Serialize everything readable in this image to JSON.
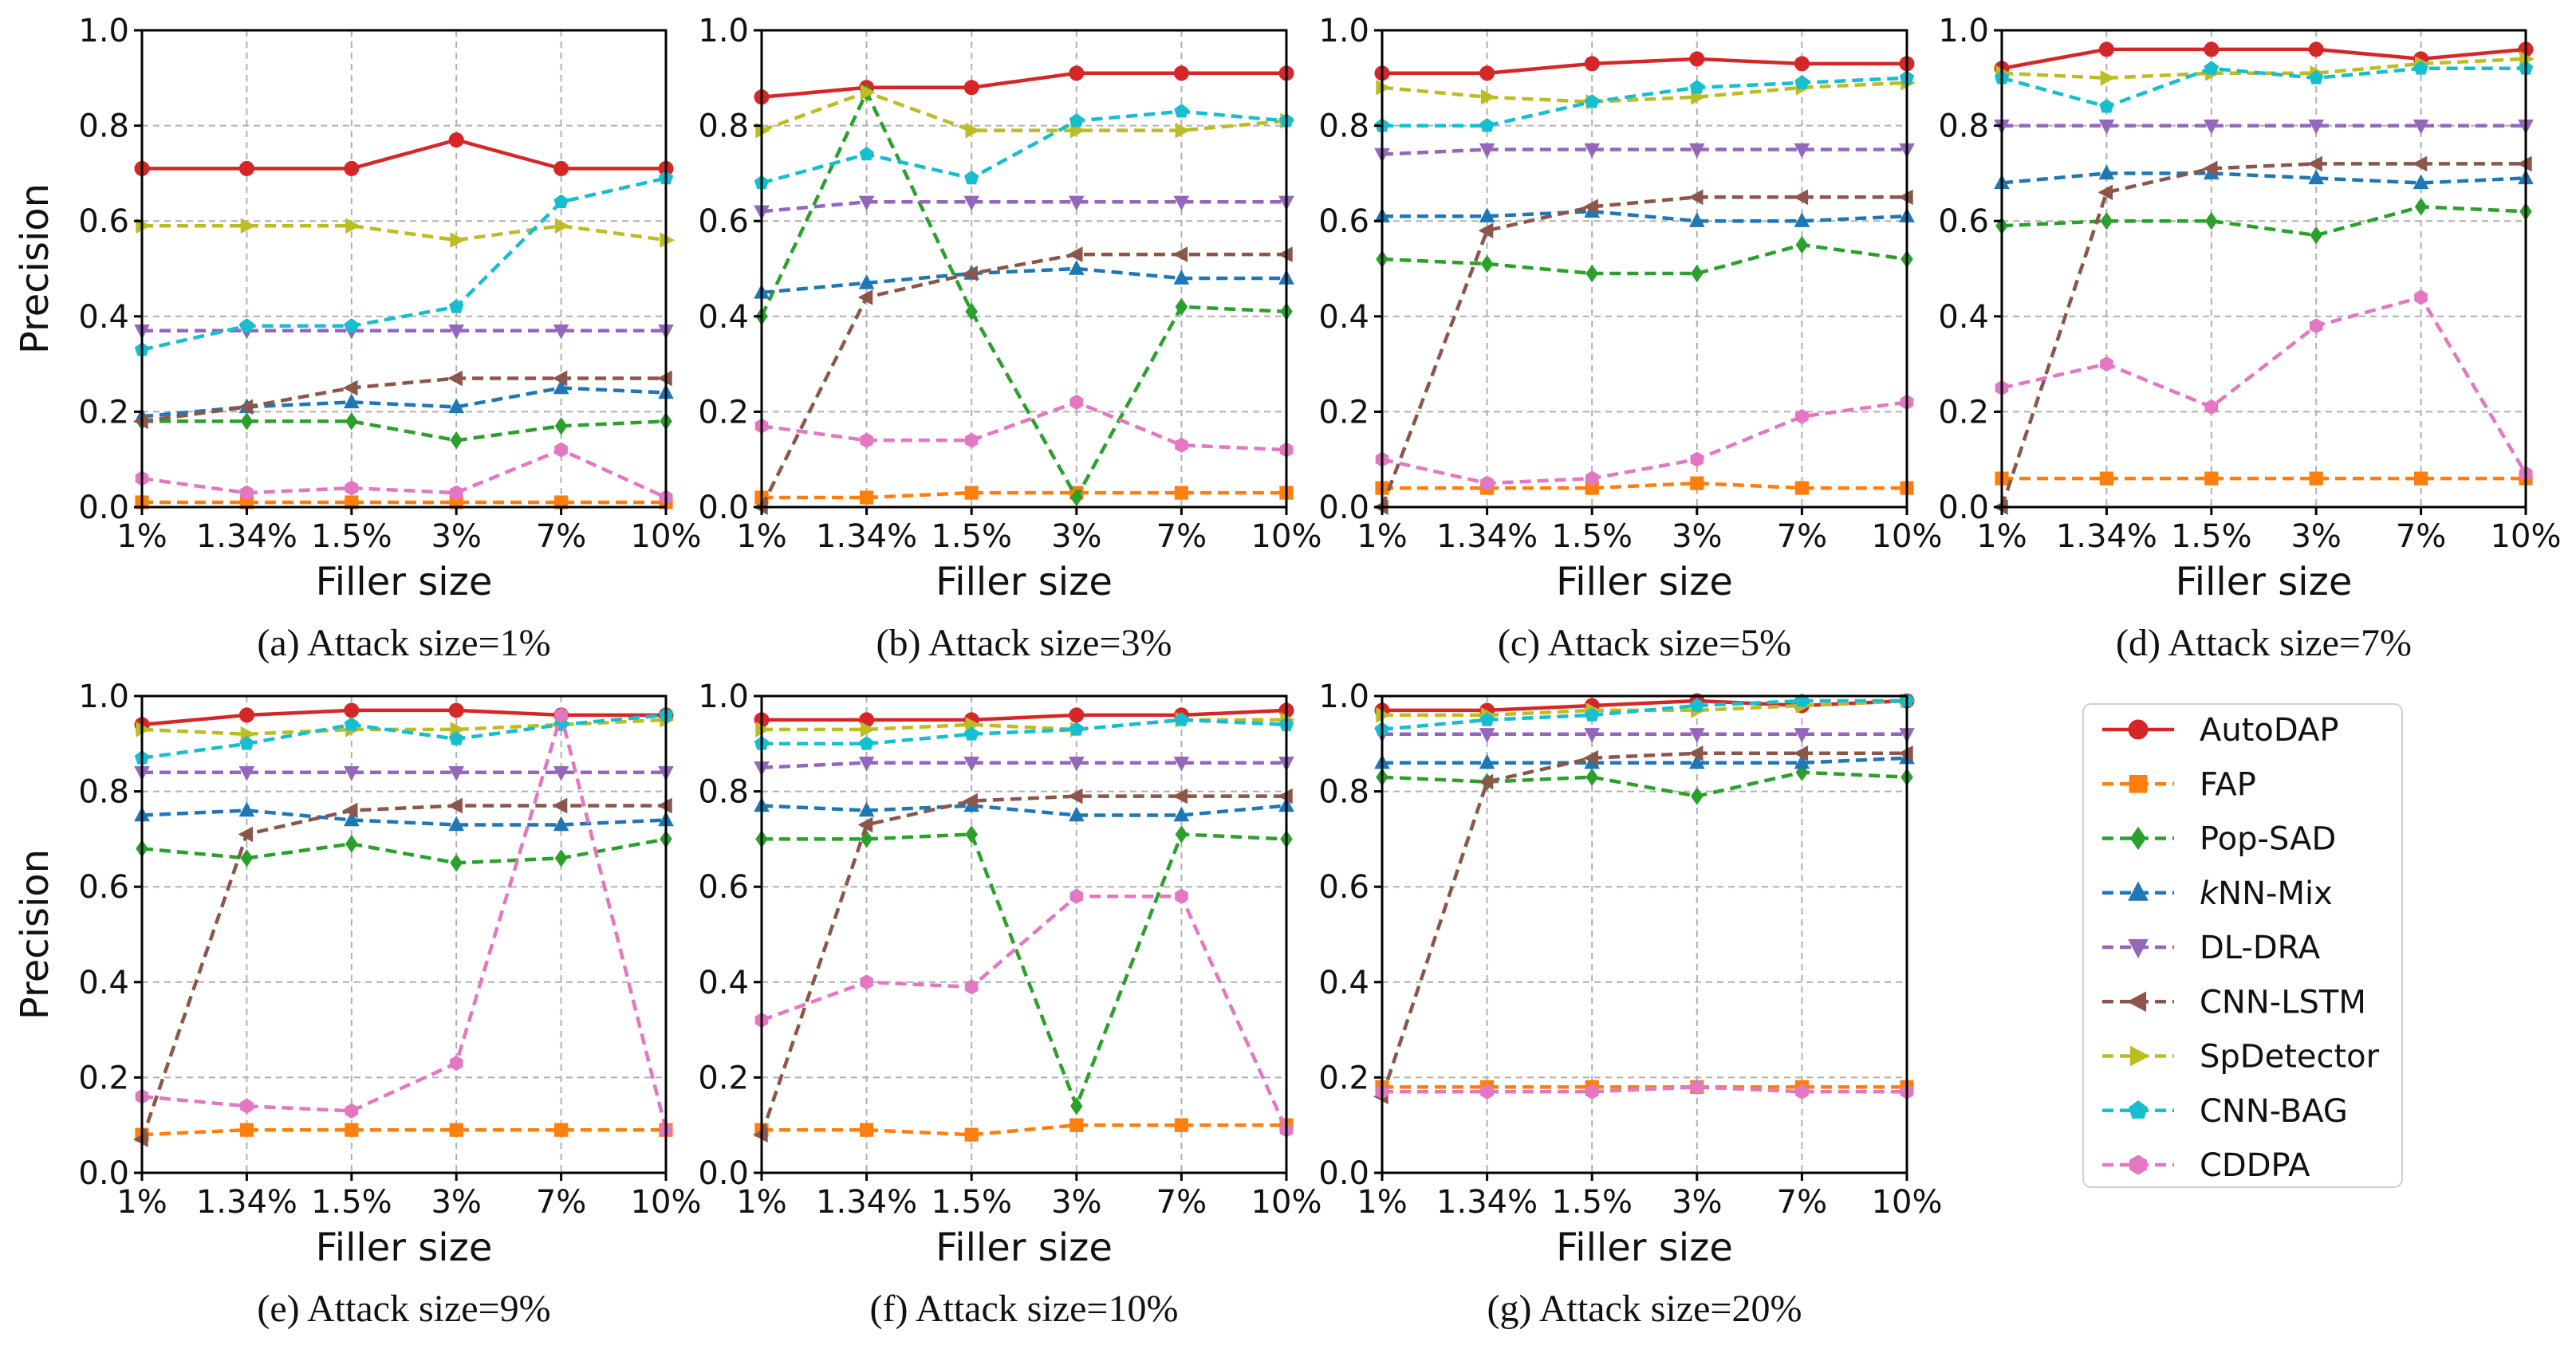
{
  "figure": {
    "legend": [
      "AutoDAP",
      "FAP",
      "Pop-SAD",
      "kNN-Mix",
      "DL-DRA",
      "CNN-LSTM",
      "SpDetector",
      "CNN-BAG",
      "CDDPA"
    ],
    "legend_placement": "in the empty bottom-right panel slot",
    "series_styles": [
      {
        "name": "AutoDAP",
        "color": "#d62728",
        "marker": "circle",
        "dash": "solid"
      },
      {
        "name": "FAP",
        "color": "#ff7f0e",
        "marker": "square",
        "dash": "dashed"
      },
      {
        "name": "Pop-SAD",
        "color": "#2ca02c",
        "marker": "diamond",
        "dash": "dashed"
      },
      {
        "name": "kNN-Mix",
        "color": "#1f77b4",
        "marker": "triangle-up",
        "dash": "dashed"
      },
      {
        "name": "DL-DRA",
        "color": "#9467bd",
        "marker": "triangle-down",
        "dash": "dashed"
      },
      {
        "name": "CNN-LSTM",
        "color": "#8c564b",
        "marker": "triangle-left",
        "dash": "dashed"
      },
      {
        "name": "SpDetector",
        "color": "#bcbd22",
        "marker": "triangle-right",
        "dash": "dashed"
      },
      {
        "name": "CNN-BAG",
        "color": "#17becf",
        "marker": "pentagon",
        "dash": "dashed"
      },
      {
        "name": "CDDPA",
        "color": "#e377c2",
        "marker": "hexagon",
        "dash": "dashed"
      }
    ]
  },
  "chart_data": [
    {
      "type": "line",
      "caption": "(a) Attack size=1%",
      "xlabel": "Filler size",
      "ylabel": "Precision",
      "categories": [
        "1%",
        "1.34%",
        "1.5%",
        "3%",
        "7%",
        "10%"
      ],
      "ylim": [
        0,
        1
      ],
      "yticks": [
        "0.0",
        "0.2",
        "0.4",
        "0.6",
        "0.8",
        "1.0"
      ],
      "grid": true,
      "series": [
        {
          "name": "AutoDAP",
          "values": [
            0.71,
            0.71,
            0.71,
            0.77,
            0.71,
            0.71
          ]
        },
        {
          "name": "FAP",
          "values": [
            0.01,
            0.01,
            0.01,
            0.01,
            0.01,
            0.01
          ]
        },
        {
          "name": "Pop-SAD",
          "values": [
            0.18,
            0.18,
            0.18,
            0.14,
            0.17,
            0.18
          ]
        },
        {
          "name": "kNN-Mix",
          "values": [
            0.19,
            0.21,
            0.22,
            0.21,
            0.25,
            0.24
          ]
        },
        {
          "name": "DL-DRA",
          "values": [
            0.37,
            0.37,
            0.37,
            0.37,
            0.37,
            0.37
          ]
        },
        {
          "name": "CNN-LSTM",
          "values": [
            0.18,
            0.21,
            0.25,
            0.27,
            0.27,
            0.27
          ]
        },
        {
          "name": "SpDetector",
          "values": [
            0.59,
            0.59,
            0.59,
            0.56,
            0.59,
            0.56
          ]
        },
        {
          "name": "CNN-BAG",
          "values": [
            0.33,
            0.38,
            0.38,
            0.42,
            0.64,
            0.69
          ]
        },
        {
          "name": "CDDPA",
          "values": [
            0.06,
            0.03,
            0.04,
            0.03,
            0.12,
            0.02
          ]
        }
      ]
    },
    {
      "type": "line",
      "caption": "(b) Attack size=3%",
      "xlabel": "Filler size",
      "ylabel": "",
      "categories": [
        "1%",
        "1.34%",
        "1.5%",
        "3%",
        "7%",
        "10%"
      ],
      "ylim": [
        0,
        1
      ],
      "yticks": [
        "0.0",
        "0.2",
        "0.4",
        "0.6",
        "0.8",
        "1.0"
      ],
      "grid": true,
      "series": [
        {
          "name": "AutoDAP",
          "values": [
            0.86,
            0.88,
            0.88,
            0.91,
            0.91,
            0.91
          ]
        },
        {
          "name": "FAP",
          "values": [
            0.02,
            0.02,
            0.03,
            0.03,
            0.03,
            0.03
          ]
        },
        {
          "name": "Pop-SAD",
          "values": [
            0.4,
            0.87,
            0.41,
            0.02,
            0.42,
            0.41
          ]
        },
        {
          "name": "kNN-Mix",
          "values": [
            0.45,
            0.47,
            0.49,
            0.5,
            0.48,
            0.48
          ]
        },
        {
          "name": "DL-DRA",
          "values": [
            0.62,
            0.64,
            0.64,
            0.64,
            0.64,
            0.64
          ]
        },
        {
          "name": "CNN-LSTM",
          "values": [
            0.0,
            0.44,
            0.49,
            0.53,
            0.53,
            0.53
          ]
        },
        {
          "name": "SpDetector",
          "values": [
            0.79,
            0.87,
            0.79,
            0.79,
            0.79,
            0.81
          ]
        },
        {
          "name": "CNN-BAG",
          "values": [
            0.68,
            0.74,
            0.69,
            0.81,
            0.83,
            0.81
          ]
        },
        {
          "name": "CDDPA",
          "values": [
            0.17,
            0.14,
            0.14,
            0.22,
            0.13,
            0.12
          ]
        }
      ]
    },
    {
      "type": "line",
      "caption": "(c) Attack size=5%",
      "xlabel": "Filler size",
      "ylabel": "",
      "categories": [
        "1%",
        "1.34%",
        "1.5%",
        "3%",
        "7%",
        "10%"
      ],
      "ylim": [
        0,
        1
      ],
      "yticks": [
        "0.0",
        "0.2",
        "0.4",
        "0.6",
        "0.8",
        "1.0"
      ],
      "grid": true,
      "series": [
        {
          "name": "AutoDAP",
          "values": [
            0.91,
            0.91,
            0.93,
            0.94,
            0.93,
            0.93
          ]
        },
        {
          "name": "FAP",
          "values": [
            0.04,
            0.04,
            0.04,
            0.05,
            0.04,
            0.04
          ]
        },
        {
          "name": "Pop-SAD",
          "values": [
            0.52,
            0.51,
            0.49,
            0.49,
            0.55,
            0.52
          ]
        },
        {
          "name": "kNN-Mix",
          "values": [
            0.61,
            0.61,
            0.62,
            0.6,
            0.6,
            0.61
          ]
        },
        {
          "name": "DL-DRA",
          "values": [
            0.74,
            0.75,
            0.75,
            0.75,
            0.75,
            0.75
          ]
        },
        {
          "name": "CNN-LSTM",
          "values": [
            0.0,
            0.58,
            0.63,
            0.65,
            0.65,
            0.65
          ]
        },
        {
          "name": "SpDetector",
          "values": [
            0.88,
            0.86,
            0.85,
            0.86,
            0.88,
            0.89
          ]
        },
        {
          "name": "CNN-BAG",
          "values": [
            0.8,
            0.8,
            0.85,
            0.88,
            0.89,
            0.9
          ]
        },
        {
          "name": "CDDPA",
          "values": [
            0.1,
            0.05,
            0.06,
            0.1,
            0.19,
            0.22
          ]
        }
      ]
    },
    {
      "type": "line",
      "caption": "(d) Attack size=7%",
      "xlabel": "Filler size",
      "ylabel": "",
      "categories": [
        "1%",
        "1.34%",
        "1.5%",
        "3%",
        "7%",
        "10%"
      ],
      "ylim": [
        0,
        1
      ],
      "yticks": [
        "0.0",
        "0.2",
        "0.4",
        "0.6",
        "0.8",
        "1.0"
      ],
      "grid": true,
      "series": [
        {
          "name": "AutoDAP",
          "values": [
            0.92,
            0.96,
            0.96,
            0.96,
            0.94,
            0.96
          ]
        },
        {
          "name": "FAP",
          "values": [
            0.06,
            0.06,
            0.06,
            0.06,
            0.06,
            0.06
          ]
        },
        {
          "name": "Pop-SAD",
          "values": [
            0.59,
            0.6,
            0.6,
            0.57,
            0.63,
            0.62
          ]
        },
        {
          "name": "kNN-Mix",
          "values": [
            0.68,
            0.7,
            0.7,
            0.69,
            0.68,
            0.69
          ]
        },
        {
          "name": "DL-DRA",
          "values": [
            0.8,
            0.8,
            0.8,
            0.8,
            0.8,
            0.8
          ]
        },
        {
          "name": "CNN-LSTM",
          "values": [
            0.0,
            0.66,
            0.71,
            0.72,
            0.72,
            0.72
          ]
        },
        {
          "name": "SpDetector",
          "values": [
            0.91,
            0.9,
            0.91,
            0.91,
            0.93,
            0.94
          ]
        },
        {
          "name": "CNN-BAG",
          "values": [
            0.9,
            0.84,
            0.92,
            0.9,
            0.92,
            0.92
          ]
        },
        {
          "name": "CDDPA",
          "values": [
            0.25,
            0.3,
            0.21,
            0.38,
            0.44,
            0.07
          ]
        }
      ]
    },
    {
      "type": "line",
      "caption": "(e) Attack size=9%",
      "xlabel": "Filler size",
      "ylabel": "Precision",
      "categories": [
        "1%",
        "1.34%",
        "1.5%",
        "3%",
        "7%",
        "10%"
      ],
      "ylim": [
        0,
        1
      ],
      "yticks": [
        "0.0",
        "0.2",
        "0.4",
        "0.6",
        "0.8",
        "1.0"
      ],
      "grid": true,
      "series": [
        {
          "name": "AutoDAP",
          "values": [
            0.94,
            0.96,
            0.97,
            0.97,
            0.96,
            0.96
          ]
        },
        {
          "name": "FAP",
          "values": [
            0.08,
            0.09,
            0.09,
            0.09,
            0.09,
            0.09
          ]
        },
        {
          "name": "Pop-SAD",
          "values": [
            0.68,
            0.66,
            0.69,
            0.65,
            0.66,
            0.7
          ]
        },
        {
          "name": "kNN-Mix",
          "values": [
            0.75,
            0.76,
            0.74,
            0.73,
            0.73,
            0.74
          ]
        },
        {
          "name": "DL-DRA",
          "values": [
            0.84,
            0.84,
            0.84,
            0.84,
            0.84,
            0.84
          ]
        },
        {
          "name": "CNN-LSTM",
          "values": [
            0.07,
            0.71,
            0.76,
            0.77,
            0.77,
            0.77
          ]
        },
        {
          "name": "SpDetector",
          "values": [
            0.93,
            0.92,
            0.93,
            0.93,
            0.94,
            0.95
          ]
        },
        {
          "name": "CNN-BAG",
          "values": [
            0.87,
            0.9,
            0.94,
            0.91,
            0.94,
            0.96
          ]
        },
        {
          "name": "CDDPA",
          "values": [
            0.16,
            0.14,
            0.13,
            0.23,
            0.96,
            0.09
          ]
        }
      ]
    },
    {
      "type": "line",
      "caption": "(f) Attack size=10%",
      "xlabel": "Filler size",
      "ylabel": "",
      "categories": [
        "1%",
        "1.34%",
        "1.5%",
        "3%",
        "7%",
        "10%"
      ],
      "ylim": [
        0,
        1
      ],
      "yticks": [
        "0.0",
        "0.2",
        "0.4",
        "0.6",
        "0.8",
        "1.0"
      ],
      "grid": true,
      "series": [
        {
          "name": "AutoDAP",
          "values": [
            0.95,
            0.95,
            0.95,
            0.96,
            0.96,
            0.97
          ]
        },
        {
          "name": "FAP",
          "values": [
            0.09,
            0.09,
            0.08,
            0.1,
            0.1,
            0.1
          ]
        },
        {
          "name": "Pop-SAD",
          "values": [
            0.7,
            0.7,
            0.71,
            0.14,
            0.71,
            0.7
          ]
        },
        {
          "name": "kNN-Mix",
          "values": [
            0.77,
            0.76,
            0.77,
            0.75,
            0.75,
            0.77
          ]
        },
        {
          "name": "DL-DRA",
          "values": [
            0.85,
            0.86,
            0.86,
            0.86,
            0.86,
            0.86
          ]
        },
        {
          "name": "CNN-LSTM",
          "values": [
            0.08,
            0.73,
            0.78,
            0.79,
            0.79,
            0.79
          ]
        },
        {
          "name": "SpDetector",
          "values": [
            0.93,
            0.93,
            0.94,
            0.93,
            0.95,
            0.95
          ]
        },
        {
          "name": "CNN-BAG",
          "values": [
            0.9,
            0.9,
            0.92,
            0.93,
            0.95,
            0.94
          ]
        },
        {
          "name": "CDDPA",
          "values": [
            0.32,
            0.4,
            0.39,
            0.58,
            0.58,
            0.09
          ]
        }
      ]
    },
    {
      "type": "line",
      "caption": "(g) Attack size=20%",
      "xlabel": "Filler size",
      "ylabel": "",
      "categories": [
        "1%",
        "1.34%",
        "1.5%",
        "3%",
        "7%",
        "10%"
      ],
      "ylim": [
        0,
        1
      ],
      "yticks": [
        "0.0",
        "0.2",
        "0.4",
        "0.6",
        "0.8",
        "1.0"
      ],
      "grid": true,
      "series": [
        {
          "name": "AutoDAP",
          "values": [
            0.97,
            0.97,
            0.98,
            0.99,
            0.98,
            0.99
          ]
        },
        {
          "name": "FAP",
          "values": [
            0.18,
            0.18,
            0.18,
            0.18,
            0.18,
            0.18
          ]
        },
        {
          "name": "Pop-SAD",
          "values": [
            0.83,
            0.82,
            0.83,
            0.79,
            0.84,
            0.83
          ]
        },
        {
          "name": "kNN-Mix",
          "values": [
            0.86,
            0.86,
            0.86,
            0.86,
            0.86,
            0.87
          ]
        },
        {
          "name": "DL-DRA",
          "values": [
            0.92,
            0.92,
            0.92,
            0.92,
            0.92,
            0.92
          ]
        },
        {
          "name": "CNN-LSTM",
          "values": [
            0.16,
            0.82,
            0.87,
            0.88,
            0.88,
            0.88
          ]
        },
        {
          "name": "SpDetector",
          "values": [
            0.96,
            0.96,
            0.97,
            0.97,
            0.98,
            0.99
          ]
        },
        {
          "name": "CNN-BAG",
          "values": [
            0.93,
            0.95,
            0.96,
            0.98,
            0.99,
            0.99
          ]
        },
        {
          "name": "CDDPA",
          "values": [
            0.17,
            0.17,
            0.17,
            0.18,
            0.17,
            0.17
          ]
        }
      ]
    }
  ]
}
